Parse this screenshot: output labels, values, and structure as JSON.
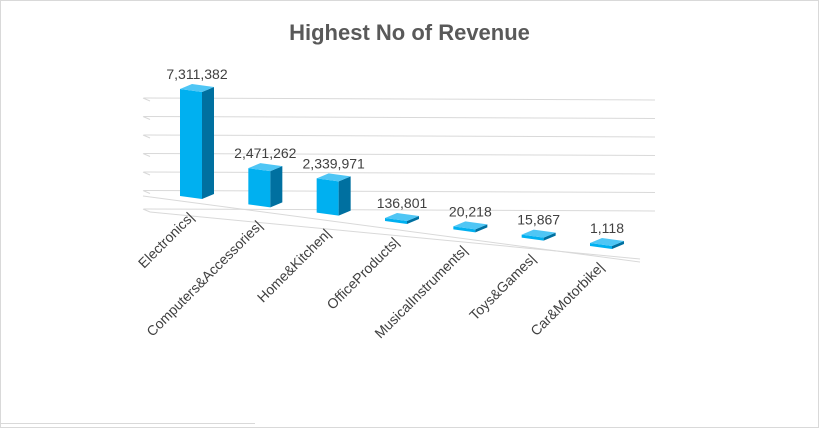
{
  "chart_data": {
    "type": "bar",
    "title": "Highest No of Revenue",
    "categories": [
      "Electronics|",
      "Computers&Accessories|",
      "Home&Kitchen|",
      "OfficeProducts|",
      "MusicalInstruments|",
      "Toys&Games|",
      "Car&Motorbike|"
    ],
    "values": [
      7311382,
      2471262,
      2339971,
      136801,
      20218,
      15867,
      1118
    ],
    "value_labels": [
      "7,311,382",
      "2,471,262",
      "2,339,971",
      "136,801",
      "20,218",
      "15,867",
      "1,118"
    ],
    "ylim": [
      0,
      8000000
    ],
    "grid": true,
    "legend": "none",
    "three_d": true,
    "colors": {
      "bar_front": "#00b0f0",
      "bar_side": "#0070a0",
      "bar_top": "#4fc6f5",
      "gridline": "#d9d9d9",
      "text": "#404040",
      "title": "#595959"
    }
  }
}
